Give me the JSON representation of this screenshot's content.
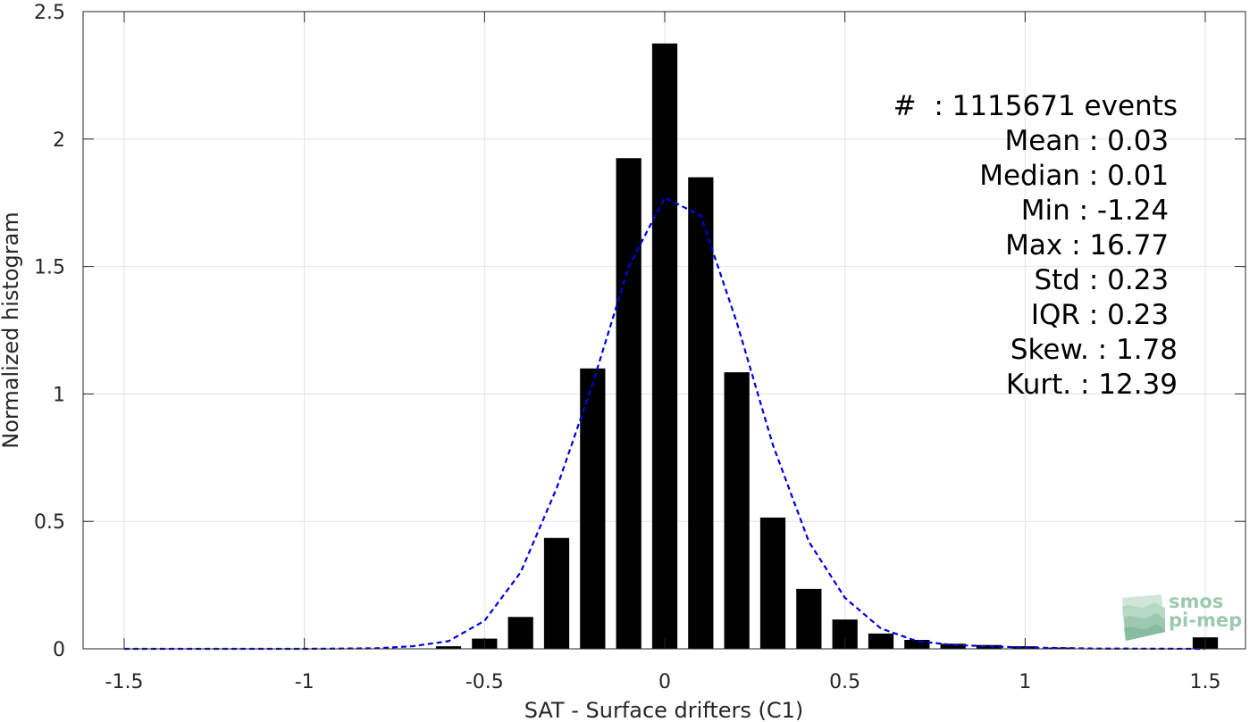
{
  "chart_data": {
    "type": "bar",
    "xlabel": "SAT - Surface drifters (C1)",
    "ylabel": "Normalized histogram",
    "xlim": [
      -1.5,
      1.5
    ],
    "ylim": [
      0,
      2.5
    ],
    "xticks": [
      "-1.5",
      "-1",
      "-0.5",
      "0",
      "0.5",
      "1",
      "1.5"
    ],
    "yticks": [
      "0",
      "0.5",
      "1",
      "1.5",
      "2",
      "2.5"
    ],
    "grid": true,
    "bar_color": "#000000",
    "fit_color": "#0000e6",
    "bins": [
      {
        "x": -0.6,
        "y": 0.01
      },
      {
        "x": -0.5,
        "y": 0.04
      },
      {
        "x": -0.4,
        "y": 0.125
      },
      {
        "x": -0.3,
        "y": 0.435
      },
      {
        "x": -0.2,
        "y": 1.1
      },
      {
        "x": -0.1,
        "y": 1.925
      },
      {
        "x": 0.0,
        "y": 2.375
      },
      {
        "x": 0.1,
        "y": 1.85
      },
      {
        "x": 0.2,
        "y": 1.085
      },
      {
        "x": 0.3,
        "y": 0.515
      },
      {
        "x": 0.4,
        "y": 0.235
      },
      {
        "x": 0.5,
        "y": 0.115
      },
      {
        "x": 0.6,
        "y": 0.06
      },
      {
        "x": 0.7,
        "y": 0.035
      },
      {
        "x": 0.8,
        "y": 0.02
      },
      {
        "x": 0.9,
        "y": 0.015
      },
      {
        "x": 1.0,
        "y": 0.01
      },
      {
        "x": 1.1,
        "y": 0.005
      },
      {
        "x": 1.5,
        "y": 0.045
      }
    ],
    "fit_curve": [
      {
        "x": -1.5,
        "y": 0.0
      },
      {
        "x": -1.0,
        "y": 0.0
      },
      {
        "x": -0.8,
        "y": 0.002
      },
      {
        "x": -0.7,
        "y": 0.01
      },
      {
        "x": -0.6,
        "y": 0.03
      },
      {
        "x": -0.5,
        "y": 0.11
      },
      {
        "x": -0.4,
        "y": 0.3
      },
      {
        "x": -0.3,
        "y": 0.63
      },
      {
        "x": -0.2,
        "y": 1.04
      },
      {
        "x": -0.1,
        "y": 1.5
      },
      {
        "x": 0.0,
        "y": 1.77
      },
      {
        "x": 0.1,
        "y": 1.7
      },
      {
        "x": 0.2,
        "y": 1.28
      },
      {
        "x": 0.3,
        "y": 0.8
      },
      {
        "x": 0.4,
        "y": 0.42
      },
      {
        "x": 0.5,
        "y": 0.2
      },
      {
        "x": 0.6,
        "y": 0.08
      },
      {
        "x": 0.7,
        "y": 0.03
      },
      {
        "x": 0.8,
        "y": 0.015
      },
      {
        "x": 1.0,
        "y": 0.005
      },
      {
        "x": 1.2,
        "y": 0.001
      },
      {
        "x": 1.5,
        "y": 0.0
      }
    ]
  },
  "stats": {
    "events": "#  : 1115671 events",
    "mean": "Mean : 0.03 ",
    "median": "Median : 0.01 ",
    "min": "Min : -1.24 ",
    "max": "Max : 16.77 ",
    "std": "Std : 0.23 ",
    "iqr": "IQR : 0.23 ",
    "skew": "Skew. : 1.78",
    "kurt": "Kurt. : 12.39"
  },
  "logo": {
    "line1": "smos",
    "line2": "pi-mep",
    "color": "#9cc9b0"
  }
}
